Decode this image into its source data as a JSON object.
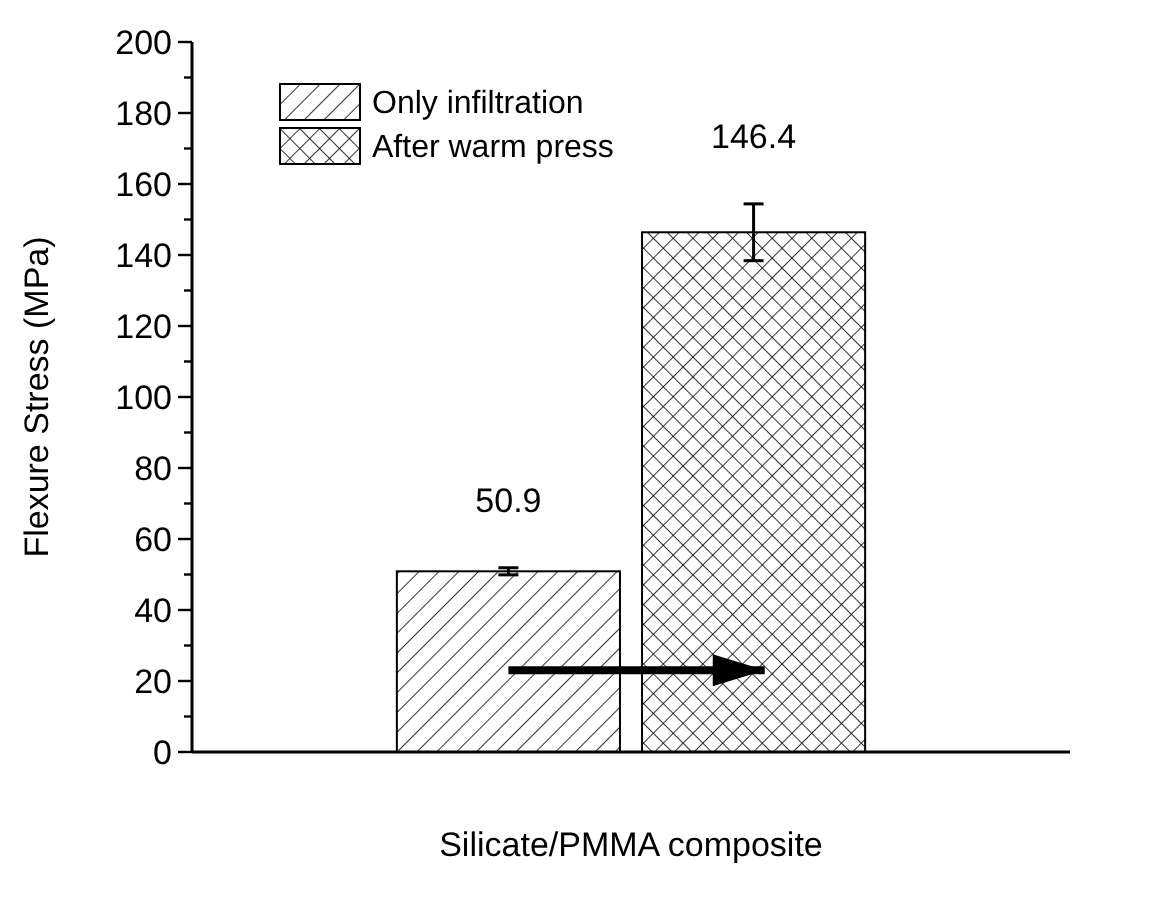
{
  "chart_data": {
    "type": "bar",
    "ylabel": "Flexure Stress (MPa)",
    "categories": [
      "Silicate/PMMA composite"
    ],
    "series": [
      {
        "name": "Only infiltration",
        "color": "#000000",
        "values": [
          50.9
        ],
        "errors": [
          1
        ]
      },
      {
        "name": "After warm press",
        "color": "#000000",
        "values": [
          146.4
        ],
        "errors": [
          8
        ]
      }
    ],
    "ylim": [
      0,
      200
    ],
    "yticks": [
      0,
      {
        "value": 10,
        "label": null
      },
      20,
      {
        "value": 30,
        "label": null
      },
      40,
      {
        "value": 50,
        "label": null
      },
      60,
      {
        "value": 70,
        "label": null
      },
      80,
      {
        "value": 90,
        "label": null
      },
      100,
      {
        "value": 110,
        "label": null
      },
      120,
      {
        "value": 130,
        "label": null
      },
      140,
      {
        "value": 150,
        "label": null
      },
      160,
      {
        "value": 170,
        "label": null
      },
      180,
      {
        "value": 190,
        "label": null
      },
      200
    ],
    "data_labels": true,
    "legend": "top left"
  }
}
